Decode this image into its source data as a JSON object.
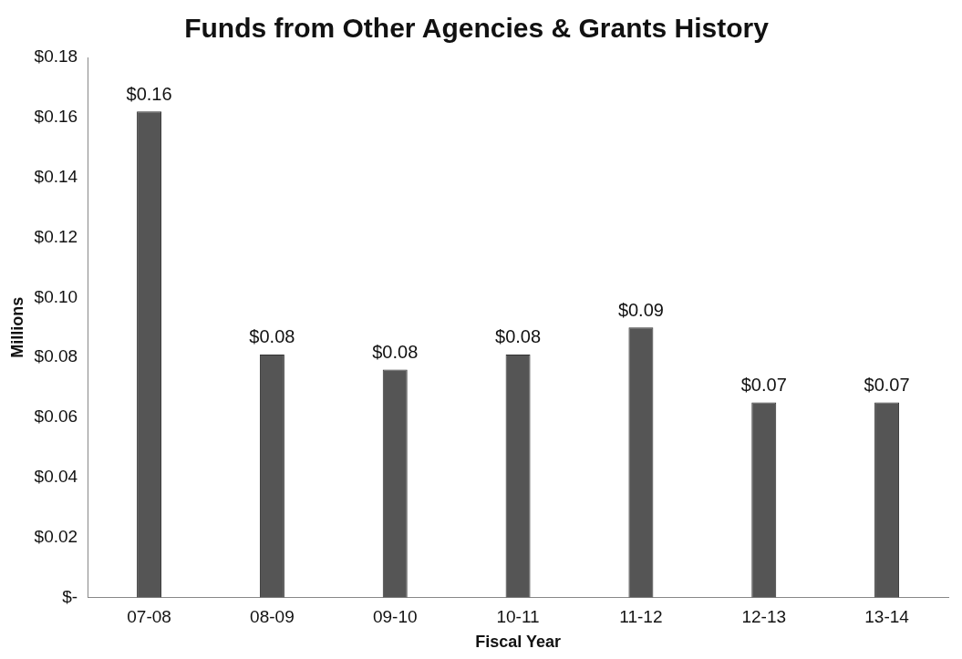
{
  "chart_data": {
    "type": "bar",
    "title": "Funds from Other Agencies & Grants History",
    "xlabel": "Fiscal Year",
    "ylabel": "Millions",
    "categories": [
      "07-08",
      "08-09",
      "09-10",
      "10-11",
      "11-12",
      "12-13",
      "13-14"
    ],
    "values": [
      0.162,
      0.081,
      0.076,
      0.081,
      0.09,
      0.065,
      0.065
    ],
    "value_labels": [
      "$0.16",
      "$0.08",
      "$0.08",
      "$0.08",
      "$0.09",
      "$0.07",
      "$0.07"
    ],
    "color": "#555555",
    "ylim": [
      0,
      0.18
    ],
    "yticks": [
      {
        "value": 0,
        "label": "$-"
      },
      {
        "value": 0.02,
        "label": "$0.02"
      },
      {
        "value": 0.04,
        "label": "$0.04"
      },
      {
        "value": 0.06,
        "label": "$0.06"
      },
      {
        "value": 0.08,
        "label": "$0.08"
      },
      {
        "value": 0.1,
        "label": "$0.10"
      },
      {
        "value": 0.12,
        "label": "$0.12"
      },
      {
        "value": 0.14,
        "label": "$0.14"
      },
      {
        "value": 0.16,
        "label": "$0.16"
      },
      {
        "value": 0.18,
        "label": "$0.18"
      }
    ],
    "grid": false,
    "legend": false
  }
}
